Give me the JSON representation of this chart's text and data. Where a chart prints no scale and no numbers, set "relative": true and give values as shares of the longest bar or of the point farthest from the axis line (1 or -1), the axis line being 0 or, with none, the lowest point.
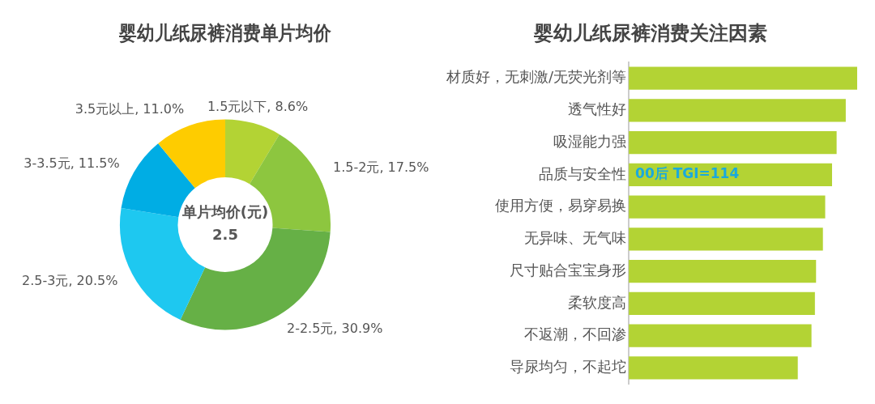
{
  "chart_data": [
    {
      "type": "donut",
      "title": "婴幼儿纸尿裤消费单片均价",
      "categories": [
        "1.5元以下",
        "1.5-2元",
        "2-2.5元",
        "2.5-3元",
        "3-3.5元",
        "3.5元以上"
      ],
      "values": [
        8.6,
        17.5,
        30.9,
        20.5,
        11.5,
        11.0
      ],
      "value_labels": [
        "8.6%",
        "17.5%",
        "30.9%",
        "20.5%",
        "11.5%",
        "11.0%"
      ],
      "colors": [
        "#b3d334",
        "#8dc63f",
        "#66b046",
        "#1ec8f0",
        "#00ade4",
        "#fecc00"
      ],
      "annotations": [
        "单片均价(元)",
        "2.5"
      ]
    },
    {
      "type": "bar",
      "orientation": "horizontal",
      "relative": true,
      "title": "婴幼儿纸尿裤消费关注因素",
      "categories": [
        "材质好，无刺激/无荧光剂等",
        "透气性好",
        "吸湿能力强",
        "品质与安全性",
        "使用方便，易穿易换",
        "无异味、无气味",
        "尺寸贴合宝宝身形",
        "柔软度高",
        "不返潮，不回渗",
        "导尿均匀，不起坨"
      ],
      "values": [
        1,
        0.95,
        0.91,
        0.89,
        0.86,
        0.85,
        0.82,
        0.815,
        0.8,
        0.74
      ],
      "color": "#b3d334",
      "annotations": [
        {
          "text": "00后 TGI=114",
          "y": "品质与安全性"
        }
      ]
    }
  ]
}
